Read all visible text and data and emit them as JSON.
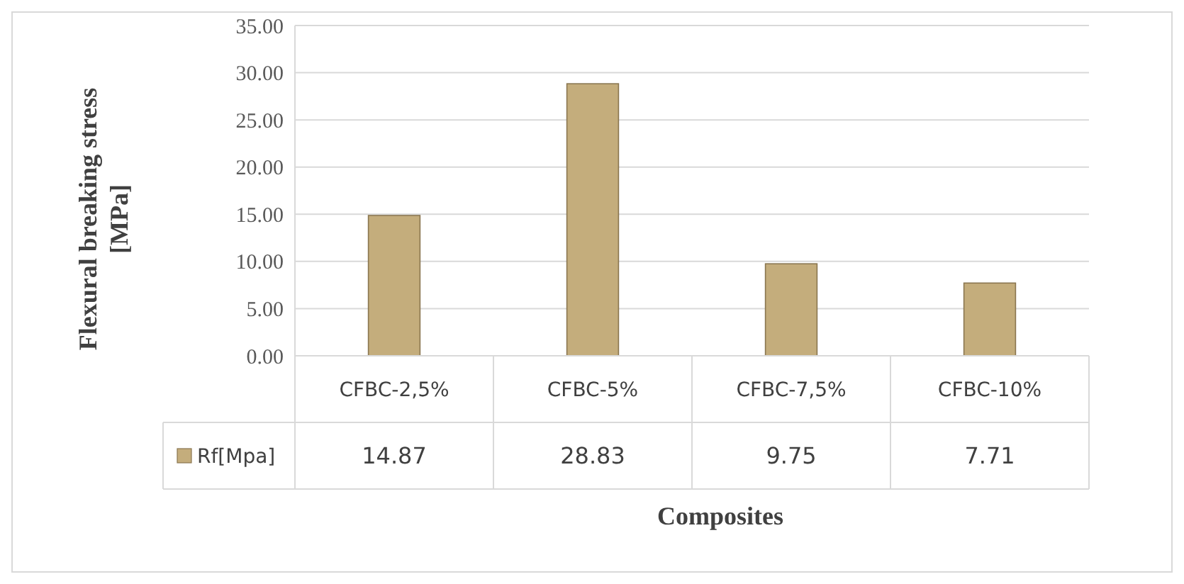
{
  "chart_data": {
    "type": "bar",
    "xlabel": "Composites",
    "ylabel": "Flexural breaking stress [MPa]",
    "categories": [
      "CFBC-2,5%",
      "CFBC-5%",
      "CFBC-7,5%",
      "CFBC-10%"
    ],
    "series": [
      {
        "name": "Rf[Mpa]",
        "color": "#c4ad7c",
        "values": [
          14.87,
          28.83,
          9.75,
          7.71
        ]
      }
    ],
    "ylim": [
      0,
      35
    ],
    "yticks": [
      {
        "value": 0,
        "label": "0.00"
      },
      {
        "value": 5,
        "label": "5.00"
      },
      {
        "value": 10,
        "label": "10.00"
      },
      {
        "value": 15,
        "label": "15.00"
      },
      {
        "value": 20,
        "label": "20.00"
      },
      {
        "value": 25,
        "label": "25.00"
      },
      {
        "value": 30,
        "label": "30.00"
      },
      {
        "value": 35,
        "label": "35.00"
      }
    ],
    "grid": "y",
    "data_labels": true,
    "legend": "bottom left"
  }
}
